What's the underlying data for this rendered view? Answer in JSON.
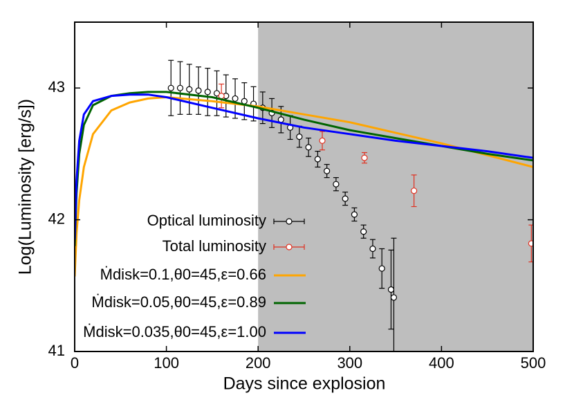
{
  "chart_data": {
    "type": "line",
    "xlabel": "Days since explosion",
    "ylabel": "Log(Luminosity [erg/s])",
    "xlim": [
      0,
      500
    ],
    "ylim": [
      41,
      43.5
    ],
    "xticks": [
      0,
      100,
      200,
      300,
      400,
      500
    ],
    "yticks": [
      41,
      42,
      43
    ],
    "shaded_region": [
      200,
      500
    ],
    "shade_color": "#bebebe",
    "series": [
      {
        "name": "Optical luminosity",
        "color": "#000000",
        "style": "errorbar",
        "x": [
          105,
          115,
          125,
          135,
          145,
          155,
          165,
          175,
          185,
          195,
          205,
          215,
          225,
          235,
          245,
          255,
          265,
          275,
          285,
          295,
          305,
          315,
          325,
          335,
          345,
          348
        ],
        "values": [
          43.0,
          43.0,
          42.99,
          42.98,
          42.97,
          42.96,
          42.94,
          42.92,
          42.9,
          42.88,
          42.85,
          42.81,
          42.76,
          42.7,
          42.63,
          42.55,
          42.46,
          42.37,
          42.27,
          42.16,
          42.04,
          41.91,
          41.78,
          41.63,
          41.47,
          41.41
        ],
        "errors": [
          0.21,
          0.2,
          0.19,
          0.18,
          0.18,
          0.17,
          0.16,
          0.15,
          0.14,
          0.13,
          0.12,
          0.11,
          0.1,
          0.09,
          0.08,
          0.07,
          0.06,
          0.05,
          0.05,
          0.05,
          0.05,
          0.05,
          0.07,
          0.15,
          0.3,
          0.45
        ]
      },
      {
        "name": "Total luminosity",
        "color": "#e03020",
        "style": "errorbar",
        "x": [
          160,
          270,
          316,
          370,
          498
        ],
        "values": [
          42.94,
          42.6,
          42.47,
          42.22,
          41.82
        ],
        "errors": [
          0.09,
          0.07,
          0.04,
          0.12,
          0.14
        ]
      },
      {
        "name": "Ṁdisk=0.1,θ0=45,ε=0.66",
        "color": "#ffa500",
        "style": "line",
        "x": [
          0,
          2,
          5,
          10,
          20,
          40,
          60,
          80,
          100,
          150,
          200,
          250,
          300,
          350,
          400,
          450,
          500
        ],
        "values": [
          41.57,
          41.9,
          42.15,
          42.4,
          42.65,
          42.83,
          42.89,
          42.92,
          42.93,
          42.9,
          42.86,
          42.8,
          42.74,
          42.66,
          42.58,
          42.49,
          42.4
        ]
      },
      {
        "name": "Ṁdisk=0.05,θ0=45,ε=0.89",
        "color": "#006400",
        "style": "line",
        "x": [
          0,
          2,
          5,
          10,
          20,
          40,
          60,
          80,
          100,
          150,
          200,
          250,
          300,
          350,
          400,
          450,
          500
        ],
        "values": [
          41.8,
          42.2,
          42.5,
          42.72,
          42.87,
          42.94,
          42.96,
          42.97,
          42.97,
          42.93,
          42.85,
          42.76,
          42.68,
          42.62,
          42.56,
          42.5,
          42.45
        ]
      },
      {
        "name": "Ṁdisk=0.035,θ0=45,ε=1.00",
        "color": "#0000ff",
        "style": "line",
        "x": [
          0,
          2,
          5,
          10,
          20,
          40,
          60,
          80,
          100,
          150,
          200,
          250,
          300,
          350,
          400,
          450,
          500
        ],
        "values": [
          41.85,
          42.3,
          42.6,
          42.8,
          42.9,
          42.94,
          42.95,
          42.95,
          42.93,
          42.85,
          42.77,
          42.7,
          42.65,
          42.6,
          42.56,
          42.52,
          42.47
        ]
      }
    ]
  }
}
